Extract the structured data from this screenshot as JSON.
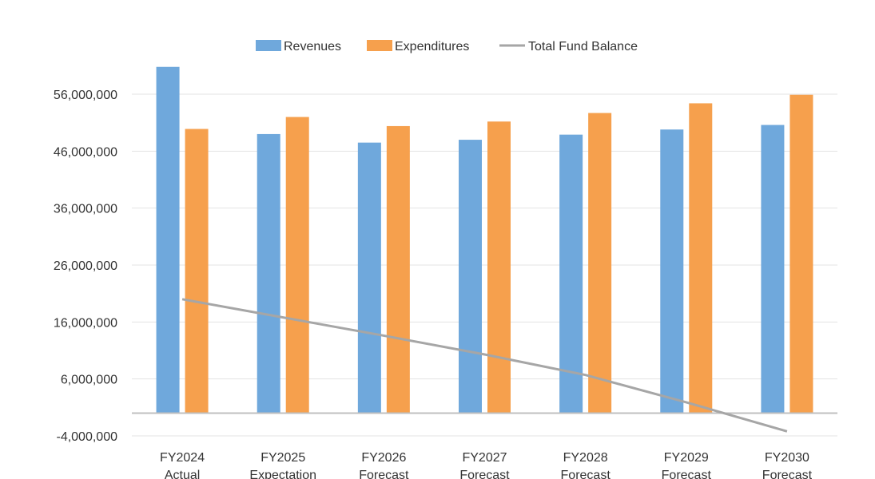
{
  "chart_data": {
    "type": "bar",
    "title": "",
    "xlabel": "",
    "ylabel": "",
    "categories": [
      [
        "FY2024",
        "Actual"
      ],
      [
        "FY2025",
        "Expectation"
      ],
      [
        "FY2026",
        "Forecast"
      ],
      [
        "FY2027",
        "Forecast"
      ],
      [
        "FY2028",
        "Forecast"
      ],
      [
        "FY2029",
        "Forecast"
      ],
      [
        "FY2030",
        "Forecast"
      ]
    ],
    "yticks": [
      "56,000,000",
      "46,000,000",
      "36,000,000",
      "26,000,000",
      "16,000,000",
      "6,000,000",
      "-4,000,000"
    ],
    "ytick_values": [
      56000000,
      46000000,
      36000000,
      26000000,
      16000000,
      6000000,
      -4000000
    ],
    "ylim": [
      -4000000,
      56000000
    ],
    "grid": true,
    "legend_position": "top-center",
    "series": [
      {
        "name": "Revenues",
        "kind": "bar",
        "color": "#6fa8dc",
        "values": [
          60800000,
          49000000,
          47500000,
          48000000,
          48900000,
          49800000,
          50600000
        ]
      },
      {
        "name": "Expenditures",
        "kind": "bar",
        "color": "#f6a04d",
        "values": [
          49900000,
          52000000,
          50400000,
          51200000,
          52700000,
          54400000,
          55900000
        ]
      },
      {
        "name": "Total Fund Balance",
        "kind": "line",
        "color": "#a6a6a6",
        "values": [
          20000000,
          16800000,
          13600000,
          10300000,
          6700000,
          1900000,
          -3200000
        ]
      }
    ]
  }
}
